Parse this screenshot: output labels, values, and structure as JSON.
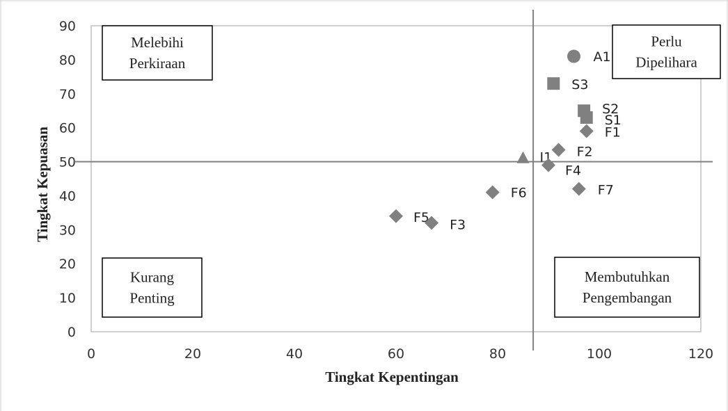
{
  "chart_data": {
    "type": "scatter",
    "xlabel": "Tingkat Kepentingan",
    "ylabel": "Tingkat Kepuasan",
    "xlim": [
      0,
      120
    ],
    "ylim": [
      0,
      90
    ],
    "x_ticks": [
      "0",
      "20",
      "40",
      "60",
      "80",
      "100",
      "120"
    ],
    "y_ticks": [
      "0",
      "10",
      "20",
      "30",
      "40",
      "50",
      "60",
      "70",
      "80",
      "90"
    ],
    "grid": false,
    "reference_lines": {
      "x": 87,
      "y": 50
    },
    "colors": {
      "points": "#808080",
      "reference_line": "#7f7f7f",
      "plot_border": "#bfbfbf"
    },
    "quadrants": [
      {
        "position": "top-left",
        "lines": [
          "Melebihi",
          "Perkiraan"
        ]
      },
      {
        "position": "top-right",
        "lines": [
          "Perlu",
          "Dipelihara"
        ]
      },
      {
        "position": "bottom-left",
        "lines": [
          "Kurang",
          "Penting"
        ]
      },
      {
        "position": "bottom-right",
        "lines": [
          "Membutuhkan",
          "Pengembangan"
        ]
      }
    ],
    "points": [
      {
        "label": "A1",
        "x": 95,
        "y": 81,
        "marker": "circle"
      },
      {
        "label": "S3",
        "x": 91,
        "y": 73,
        "marker": "square"
      },
      {
        "label": "S2",
        "x": 97,
        "y": 65,
        "marker": "square"
      },
      {
        "label": "S1",
        "x": 97.5,
        "y": 63,
        "marker": "square"
      },
      {
        "label": "F1",
        "x": 97.5,
        "y": 59,
        "marker": "diamond"
      },
      {
        "label": "F2",
        "x": 92,
        "y": 53.5,
        "marker": "diamond"
      },
      {
        "label": "I1",
        "x": 85,
        "y": 51,
        "marker": "triangle"
      },
      {
        "label": "F4",
        "x": 90,
        "y": 49,
        "marker": "diamond"
      },
      {
        "label": "F7",
        "x": 96,
        "y": 42,
        "marker": "diamond"
      },
      {
        "label": "F6",
        "x": 79,
        "y": 41,
        "marker": "diamond"
      },
      {
        "label": "F5",
        "x": 60,
        "y": 34,
        "marker": "diamond"
      },
      {
        "label": "F3",
        "x": 67,
        "y": 32,
        "marker": "diamond"
      }
    ]
  }
}
